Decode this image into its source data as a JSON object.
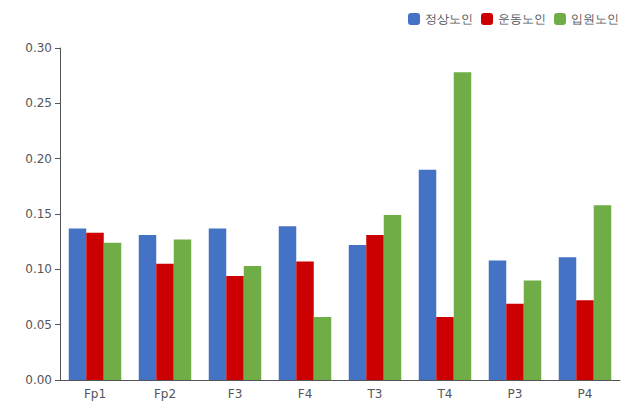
{
  "chart_data": {
    "type": "bar",
    "categories": [
      "Fp1",
      "Fp2",
      "F3",
      "F4",
      "T3",
      "T4",
      "P3",
      "P4"
    ],
    "series": [
      {
        "name": "정상노인",
        "color": "#4472C4",
        "values": [
          0.137,
          0.131,
          0.137,
          0.139,
          0.122,
          0.19,
          0.108,
          0.111
        ]
      },
      {
        "name": "운동노인",
        "color": "#CC0000",
        "values": [
          0.133,
          0.105,
          0.094,
          0.107,
          0.131,
          0.057,
          0.069,
          0.072
        ]
      },
      {
        "name": "입원노인",
        "color": "#70AD47",
        "values": [
          0.124,
          0.127,
          0.103,
          0.057,
          0.149,
          0.278,
          0.09,
          0.158
        ]
      }
    ],
    "ylim": [
      0,
      0.3
    ],
    "yticks": [
      {
        "value": 0,
        "label": "0.00"
      },
      0.05,
      {
        "value": 0.1,
        "label": "0.10"
      },
      0.15,
      {
        "value": 0.2,
        "label": "0.20"
      },
      0.25,
      {
        "value": 0.3,
        "label": "0.30"
      }
    ],
    "grid": false,
    "legend": "upper right"
  }
}
